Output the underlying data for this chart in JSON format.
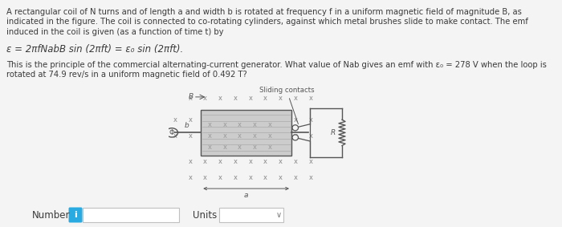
{
  "para1": "A rectangular coil of N turns and of length a and width b is rotated at frequency f in a uniform magnetic field of magnitude B, as\nindicated in the figure. The coil is connected to co-rotating cylinders, against which metal brushes slide to make contact. The emf\ninduced in the coil is given (as a function of time t) by",
  "formula": "ε = 2πfNabB sin (2πft) = ε₀ sin (2πft).",
  "para2_line1": "This is the principle of the commercial alternating-current generator. What value of Nab gives an emf with ε₀ = 278 V when the loop is",
  "para2_line2": "rotated at 74.9 rev/s in a uniform magnetic field of 0.492 T?",
  "sliding_contacts_label": "Sliding contacts",
  "number_label": "Number",
  "units_label": "Units",
  "bg_color": "#f4f4f4",
  "text_color": "#3a3a3a",
  "diagram_color": "#555555",
  "info_btn_color": "#29abe2",
  "main_font_size": 7.2,
  "formula_font_size": 8.5
}
